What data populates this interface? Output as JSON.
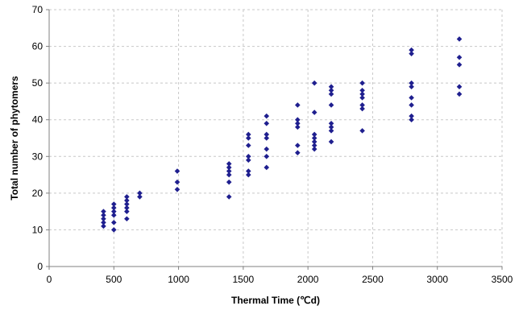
{
  "chart_data": {
    "type": "scatter",
    "title": "",
    "xlabel": "Thermal Time (℃d)",
    "ylabel": "Total number of phytomers",
    "xlim": [
      0,
      3500
    ],
    "ylim": [
      0,
      70
    ],
    "xticks": [
      0,
      500,
      1000,
      1500,
      2000,
      2500,
      3000,
      3500
    ],
    "yticks": [
      0,
      10,
      20,
      30,
      40,
      50,
      60,
      70
    ],
    "grid": true,
    "grid_style": "dashed",
    "legend": "none",
    "marker": "diamond",
    "marker_color": "#1f1f8f",
    "series": [
      {
        "points": [
          [
            420,
            11
          ],
          [
            420,
            12
          ],
          [
            420,
            13
          ],
          [
            420,
            14
          ],
          [
            420,
            15
          ],
          [
            500,
            10
          ],
          [
            500,
            12
          ],
          [
            500,
            14
          ],
          [
            500,
            15
          ],
          [
            500,
            16
          ],
          [
            500,
            17
          ],
          [
            600,
            13
          ],
          [
            600,
            15
          ],
          [
            600,
            16
          ],
          [
            600,
            17
          ],
          [
            600,
            18
          ],
          [
            600,
            19
          ],
          [
            700,
            19
          ],
          [
            700,
            20
          ],
          [
            990,
            21
          ],
          [
            990,
            23
          ],
          [
            990,
            26
          ],
          [
            1390,
            19
          ],
          [
            1390,
            23
          ],
          [
            1390,
            25
          ],
          [
            1390,
            26
          ],
          [
            1390,
            27
          ],
          [
            1390,
            28
          ],
          [
            1540,
            25
          ],
          [
            1540,
            26
          ],
          [
            1540,
            29
          ],
          [
            1540,
            30
          ],
          [
            1540,
            33
          ],
          [
            1540,
            35
          ],
          [
            1540,
            36
          ],
          [
            1680,
            27
          ],
          [
            1680,
            30
          ],
          [
            1680,
            32
          ],
          [
            1680,
            35
          ],
          [
            1680,
            36
          ],
          [
            1680,
            39
          ],
          [
            1680,
            41
          ],
          [
            1920,
            31
          ],
          [
            1920,
            33
          ],
          [
            1920,
            38
          ],
          [
            1920,
            39
          ],
          [
            1920,
            40
          ],
          [
            1920,
            44
          ],
          [
            2050,
            32
          ],
          [
            2050,
            33
          ],
          [
            2050,
            34
          ],
          [
            2050,
            35
          ],
          [
            2050,
            36
          ],
          [
            2050,
            42
          ],
          [
            2050,
            50
          ],
          [
            2180,
            34
          ],
          [
            2180,
            37
          ],
          [
            2180,
            38
          ],
          [
            2180,
            39
          ],
          [
            2180,
            44
          ],
          [
            2180,
            47
          ],
          [
            2180,
            48
          ],
          [
            2180,
            49
          ],
          [
            2420,
            37
          ],
          [
            2420,
            43
          ],
          [
            2420,
            44
          ],
          [
            2420,
            46
          ],
          [
            2420,
            47
          ],
          [
            2420,
            48
          ],
          [
            2420,
            50
          ],
          [
            2800,
            40
          ],
          [
            2800,
            41
          ],
          [
            2800,
            44
          ],
          [
            2800,
            46
          ],
          [
            2800,
            49
          ],
          [
            2800,
            50
          ],
          [
            2800,
            58
          ],
          [
            2800,
            59
          ],
          [
            3170,
            47
          ],
          [
            3170,
            49
          ],
          [
            3170,
            55
          ],
          [
            3170,
            57
          ],
          [
            3170,
            62
          ]
        ]
      }
    ]
  }
}
